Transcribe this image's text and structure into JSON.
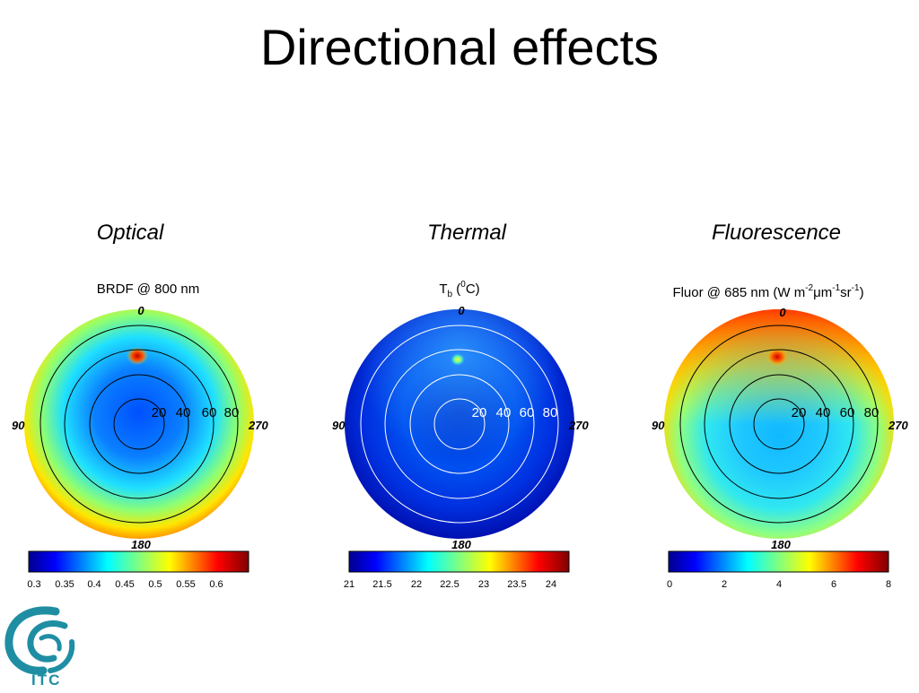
{
  "slide": {
    "title": "Directional effects"
  },
  "columns": [
    {
      "label": "Optical"
    },
    {
      "label": "Thermal"
    },
    {
      "label": "Fluorescence"
    }
  ],
  "panels": [
    {
      "plot_title": "BRDF @ 800 nm",
      "angle_labels": {
        "top": "0",
        "left": "90",
        "right": "270",
        "bottom": "180"
      },
      "ring_labels": [
        "20",
        "40",
        "60",
        "80"
      ],
      "ring_color": "#000000",
      "colorbar_ticks": [
        "0.3",
        "0.35",
        "0.4",
        "0.45",
        "0.5",
        "0.55",
        "0.6"
      ],
      "colorbar_range": [
        0.28,
        0.65
      ]
    },
    {
      "plot_title_main": "T",
      "plot_title_sub": "b",
      "plot_title_open": " (",
      "plot_title_sup": "0",
      "plot_title_unit": "C)",
      "angle_labels": {
        "top": "0",
        "left": "90",
        "right": "270",
        "bottom": "180"
      },
      "ring_labels": [
        "20",
        "40",
        "60",
        "80"
      ],
      "ring_color": "#ffffff",
      "colorbar_ticks": [
        "21",
        "21.5",
        "22",
        "22.5",
        "23",
        "23.5",
        "24"
      ],
      "colorbar_range": [
        21,
        24.3
      ]
    },
    {
      "plot_title_a": "Fluor @ 685 nm (W m",
      "plot_title_sup1": "-2",
      "plot_title_b": "μm",
      "plot_title_sup2": "-1",
      "plot_title_c": "sr",
      "plot_title_sup3": "-1",
      "plot_title_d": ")",
      "angle_labels": {
        "top": "0",
        "left": "90",
        "right": "270",
        "bottom": "180"
      },
      "ring_labels": [
        "20",
        "40",
        "60",
        "80"
      ],
      "ring_color": "#000000",
      "colorbar_ticks": [
        "0",
        "2",
        "4",
        "6",
        "8"
      ],
      "colorbar_range": [
        0,
        8
      ]
    }
  ],
  "logo": {
    "text": "ITC"
  },
  "colors": {
    "jet": [
      "#00008f",
      "#0000ff",
      "#0080ff",
      "#00ffff",
      "#80ff80",
      "#ffff00",
      "#ff8000",
      "#ff0000",
      "#800000"
    ],
    "logo_teal": "#1f8ea3"
  }
}
